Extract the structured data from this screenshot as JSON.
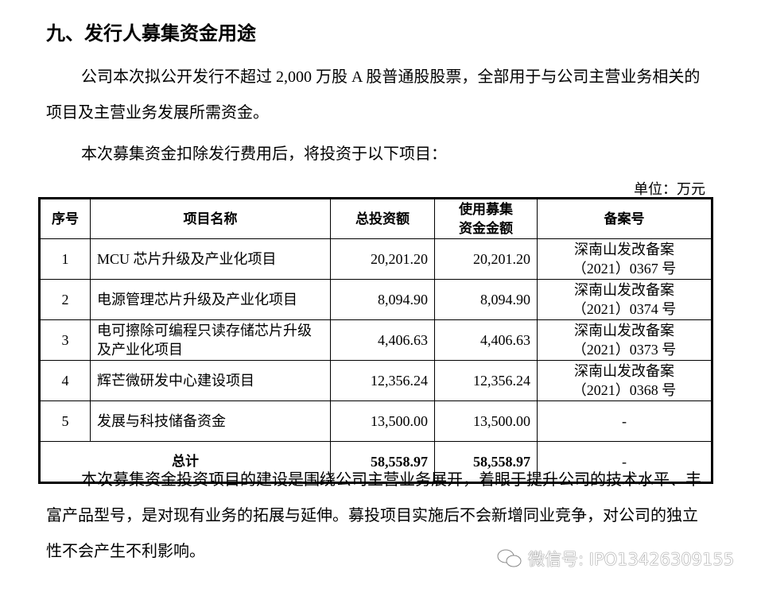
{
  "heading": "九、发行人募集资金用途",
  "para1": "公司本次拟公开发行不超过 2,000 万股 A 股普通股股票，全部用于与公司主营业务相关的项目及主营业务发展所需资金。",
  "para2": "本次募集资金扣除发行费用后，将投资于以下项目：",
  "unit": "单位：万元",
  "table": {
    "headers": [
      "序号",
      "项目名称",
      "总投资额",
      "使用募集资金金额",
      "备案号"
    ],
    "rows": [
      {
        "no": "1",
        "name": "MCU 芯片升级及产业化项目",
        "total": "20,201.20",
        "raised": "20,201.20",
        "filing": "深南山发改备案（2021）0367 号"
      },
      {
        "no": "2",
        "name": "电源管理芯片升级及产业化项目",
        "total": "8,094.90",
        "raised": "8,094.90",
        "filing": "深南山发改备案（2021）0374 号"
      },
      {
        "no": "3",
        "name": "电可擦除可编程只读存储芯片升级及产业化项目",
        "total": "4,406.63",
        "raised": "4,406.63",
        "filing": "深南山发改备案（2021）0373 号"
      },
      {
        "no": "4",
        "name": "辉芒微研发中心建设项目",
        "total": "12,356.24",
        "raised": "12,356.24",
        "filing": "深南山发改备案（2021）0368 号"
      },
      {
        "no": "5",
        "name": "发展与科技储备资金",
        "total": "13,500.00",
        "raised": "13,500.00",
        "filing": "-"
      }
    ],
    "total": {
      "label": "总计",
      "total": "58,558.97",
      "raised": "58,558.97",
      "filing": "-"
    }
  },
  "para3": "本次募集资金投资项目的建设是围绕公司主营业务展开，着眼于提升公司的技术水平、丰富产品型号，是对现有业务的拓展与延伸。募投项目实施后不会新增同业竞争，对公司的独立性不会产生不利影响。",
  "watermark": {
    "icon": "wechat-icon",
    "text": "微信号: IPO13426309155"
  }
}
